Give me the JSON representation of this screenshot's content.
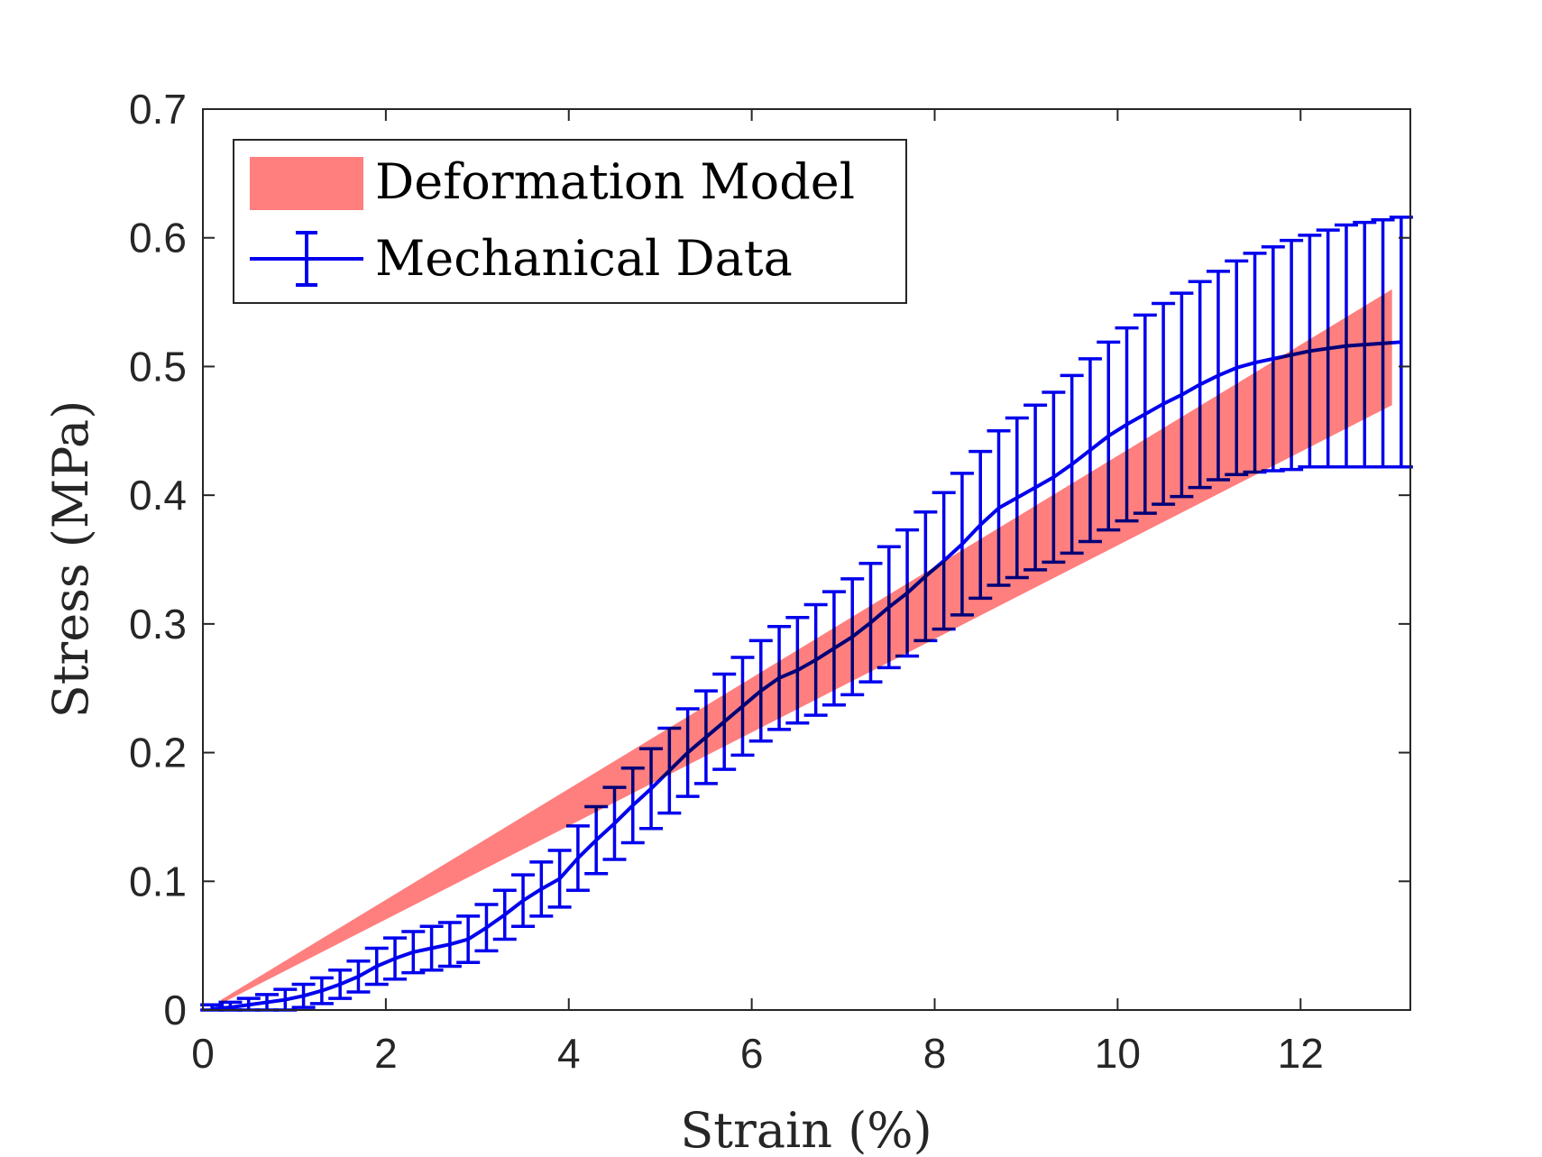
{
  "chart_data": {
    "type": "line",
    "title": "",
    "xlabel": "Strain (%)",
    "ylabel": "Stress (MPa)",
    "xlim": [
      0,
      13.2
    ],
    "ylim": [
      0,
      0.7
    ],
    "xticks": [
      0,
      2,
      4,
      6,
      8,
      10,
      12
    ],
    "yticks": [
      0,
      0.1,
      0.2,
      0.3,
      0.4,
      0.5,
      0.6,
      0.7
    ],
    "xtick_labels": [
      "0",
      "2",
      "4",
      "6",
      "8",
      "10",
      "12"
    ],
    "ytick_labels": [
      "0",
      "0.1",
      "0.2",
      "0.3",
      "0.4",
      "0.5",
      "0.6",
      "0.7"
    ],
    "grid": false,
    "legend_position": "top-left",
    "series": [
      {
        "name": "Deformation Model",
        "kind": "band",
        "color": "#ff7f7f",
        "x": [
          0.2,
          13.0
        ],
        "lower": [
          0.005,
          0.47
        ],
        "upper": [
          0.008,
          0.56
        ]
      },
      {
        "name": "Mechanical Data",
        "kind": "errorbar",
        "color": "#0000ee",
        "x": [
          0.1,
          0.3,
          0.5,
          0.7,
          0.9,
          1.1,
          1.3,
          1.5,
          1.7,
          1.9,
          2.1,
          2.3,
          2.5,
          2.7,
          2.9,
          3.1,
          3.3,
          3.5,
          3.7,
          3.9,
          4.1,
          4.3,
          4.5,
          4.7,
          4.9,
          5.1,
          5.3,
          5.5,
          5.7,
          5.9,
          6.1,
          6.3,
          6.5,
          6.7,
          6.9,
          7.1,
          7.3,
          7.5,
          7.7,
          7.9,
          8.1,
          8.3,
          8.5,
          8.7,
          8.9,
          9.1,
          9.3,
          9.5,
          9.7,
          9.9,
          10.1,
          10.3,
          10.5,
          10.7,
          10.9,
          11.1,
          11.3,
          11.5,
          11.7,
          11.9,
          12.1,
          12.3,
          12.5,
          12.7,
          12.9,
          13.1
        ],
        "y": [
          0.001,
          0.002,
          0.004,
          0.006,
          0.008,
          0.011,
          0.015,
          0.02,
          0.026,
          0.034,
          0.04,
          0.045,
          0.048,
          0.051,
          0.055,
          0.064,
          0.074,
          0.085,
          0.094,
          0.102,
          0.118,
          0.132,
          0.145,
          0.159,
          0.172,
          0.186,
          0.2,
          0.212,
          0.224,
          0.236,
          0.248,
          0.258,
          0.264,
          0.272,
          0.281,
          0.29,
          0.301,
          0.313,
          0.324,
          0.337,
          0.349,
          0.362,
          0.377,
          0.39,
          0.398,
          0.406,
          0.414,
          0.424,
          0.435,
          0.446,
          0.455,
          0.463,
          0.471,
          0.478,
          0.486,
          0.493,
          0.499,
          0.503,
          0.506,
          0.509,
          0.512,
          0.514,
          0.516,
          0.517,
          0.518,
          0.519
        ],
        "err_low": [
          0.002,
          0.003,
          0.005,
          0.007,
          0.008,
          0.009,
          0.01,
          0.011,
          0.012,
          0.014,
          0.016,
          0.016,
          0.017,
          0.017,
          0.018,
          0.018,
          0.019,
          0.02,
          0.021,
          0.022,
          0.025,
          0.026,
          0.028,
          0.029,
          0.031,
          0.033,
          0.034,
          0.036,
          0.037,
          0.038,
          0.039,
          0.04,
          0.041,
          0.043,
          0.044,
          0.045,
          0.046,
          0.047,
          0.049,
          0.05,
          0.053,
          0.055,
          0.057,
          0.06,
          0.062,
          0.064,
          0.066,
          0.069,
          0.071,
          0.073,
          0.075,
          0.077,
          0.078,
          0.079,
          0.08,
          0.081,
          0.083,
          0.085,
          0.087,
          0.089,
          0.09,
          0.092,
          0.094,
          0.095,
          0.096,
          0.097
        ],
        "err_high": [
          0.003,
          0.004,
          0.005,
          0.006,
          0.008,
          0.009,
          0.01,
          0.011,
          0.012,
          0.014,
          0.016,
          0.016,
          0.017,
          0.017,
          0.018,
          0.018,
          0.019,
          0.02,
          0.021,
          0.022,
          0.025,
          0.026,
          0.028,
          0.029,
          0.031,
          0.033,
          0.034,
          0.036,
          0.037,
          0.038,
          0.039,
          0.04,
          0.041,
          0.043,
          0.044,
          0.045,
          0.046,
          0.047,
          0.049,
          0.05,
          0.053,
          0.055,
          0.057,
          0.06,
          0.062,
          0.064,
          0.066,
          0.069,
          0.071,
          0.073,
          0.075,
          0.077,
          0.078,
          0.079,
          0.08,
          0.081,
          0.083,
          0.085,
          0.087,
          0.089,
          0.09,
          0.092,
          0.094,
          0.095,
          0.096,
          0.097
        ]
      }
    ]
  }
}
